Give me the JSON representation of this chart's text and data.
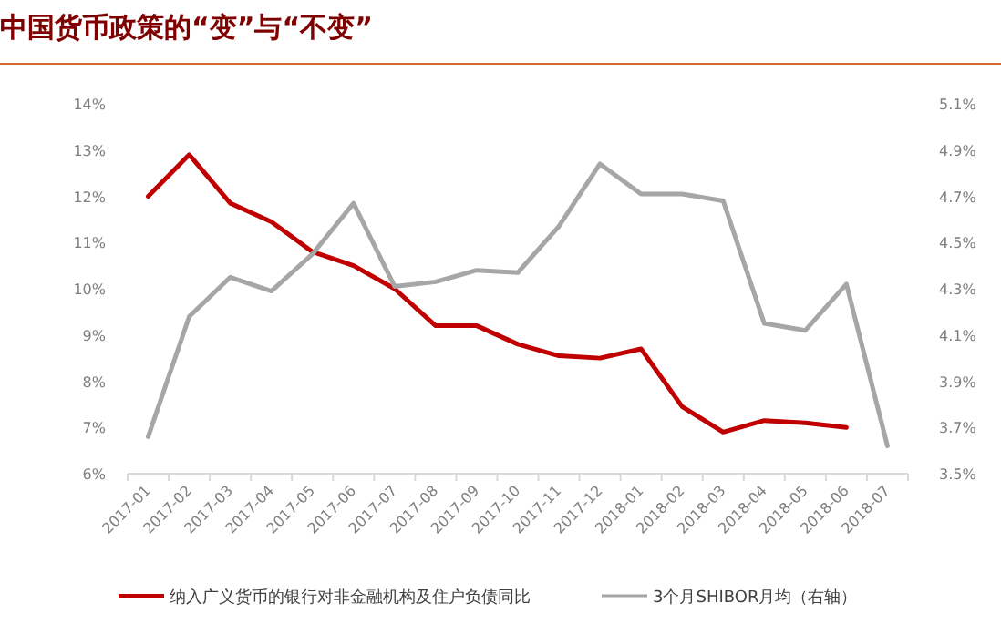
{
  "chart_data": {
    "type": "line",
    "title": "中国货币政策的“变”与“不变”",
    "categories": [
      "2017-01",
      "2017-02",
      "2017-03",
      "2017-04",
      "2017-05",
      "2017-06",
      "2017-07",
      "2017-08",
      "2017-09",
      "2017-10",
      "2017-11",
      "2017-12",
      "2018-01",
      "2018-02",
      "2018-03",
      "2018-04",
      "2018-05",
      "2018-06",
      "2018-07"
    ],
    "series": [
      {
        "name": "纳入广义货币的银行对非金融机构及住户负债同比",
        "color": "#c00000",
        "values": [
          12.0,
          12.9,
          11.85,
          11.45,
          10.8,
          10.5,
          10.0,
          9.2,
          9.2,
          8.8,
          8.55,
          8.5,
          8.7,
          7.45,
          6.9,
          7.15,
          7.1,
          7.0,
          null
        ]
      },
      {
        "name": "3个月SHIBOR月均（右轴）",
        "color": "#a6a6a6",
        "axis": "y2",
        "values": [
          3.66,
          4.18,
          4.35,
          4.29,
          4.45,
          4.67,
          4.31,
          4.33,
          4.38,
          4.37,
          4.57,
          4.84,
          4.71,
          4.71,
          4.68,
          4.15,
          4.12,
          4.32,
          3.62
        ]
      }
    ],
    "ylim": [
      6,
      14
    ],
    "yticks": [
      {
        "value": 6,
        "label": "6%"
      },
      {
        "value": 7,
        "label": "7%"
      },
      {
        "value": 8,
        "label": "8%"
      },
      {
        "value": 9,
        "label": "9%"
      },
      {
        "value": 10,
        "label": "10%"
      },
      {
        "value": 11,
        "label": "11%"
      },
      {
        "value": 12,
        "label": "12%"
      },
      {
        "value": 13,
        "label": "13%"
      },
      {
        "value": 14,
        "label": "14%"
      }
    ],
    "y2lim": [
      3.5,
      5.1
    ],
    "y2ticks": [
      {
        "value": 3.5,
        "label": "3.5%"
      },
      {
        "value": 3.7,
        "label": "3.7%"
      },
      {
        "value": 3.9,
        "label": "3.9%"
      },
      {
        "value": 4.1,
        "label": "4.1%"
      },
      {
        "value": 4.3,
        "label": "4.3%"
      },
      {
        "value": 4.5,
        "label": "4.5%"
      },
      {
        "value": 4.7,
        "label": "4.7%"
      },
      {
        "value": 4.9,
        "label": "4.9%"
      },
      {
        "value": 5.1,
        "label": "5.1%"
      }
    ],
    "grid": false,
    "legend": "bottom"
  }
}
